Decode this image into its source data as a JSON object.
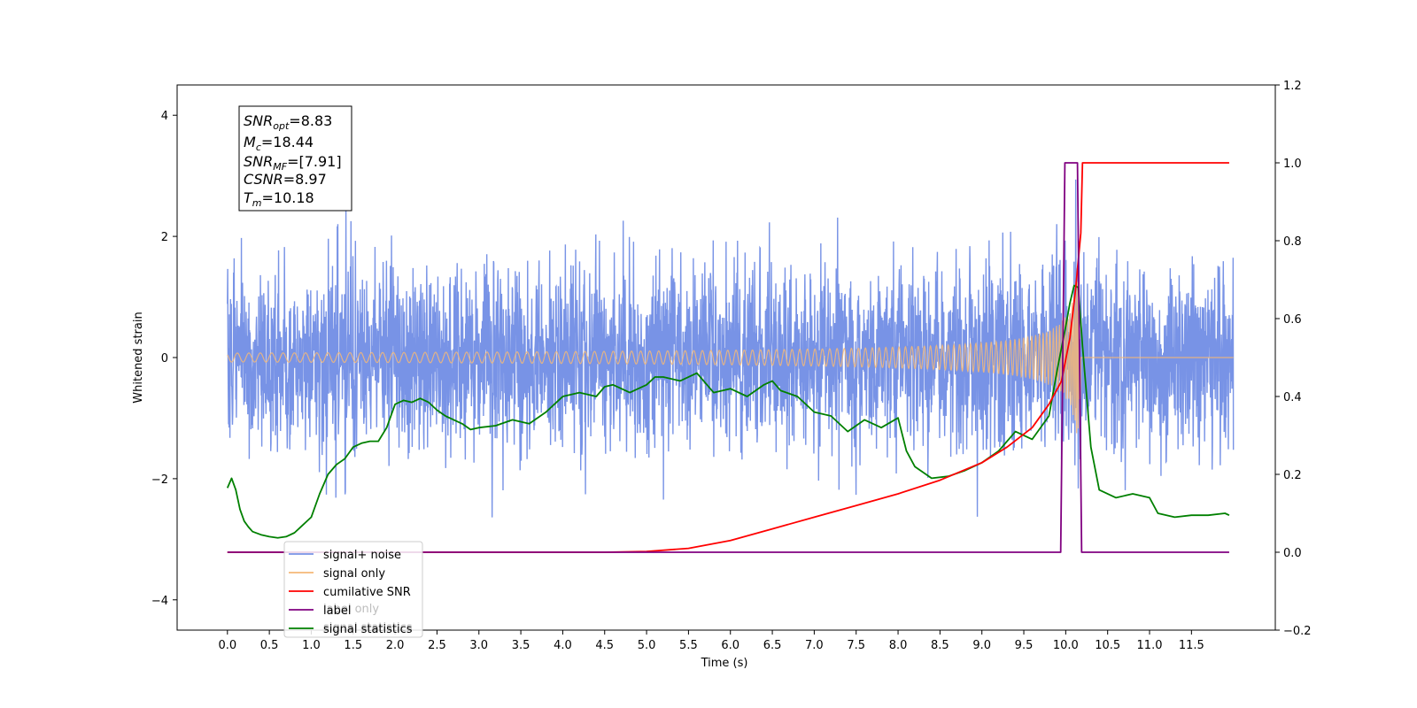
{
  "chart_data": {
    "type": "line",
    "xlabel": "Time (s)",
    "ylabel": "Whitened strain",
    "xlim": [
      -0.6,
      12.5
    ],
    "ylim": [
      -4.5,
      4.5
    ],
    "y2lim": [
      -0.2,
      1.2
    ],
    "x_ticks": [
      "0.0",
      "0.5",
      "1.0",
      "1.5",
      "2.0",
      "2.5",
      "3.0",
      "3.5",
      "4.0",
      "4.5",
      "5.0",
      "5.5",
      "6.0",
      "6.5",
      "7.0",
      "7.5",
      "8.0",
      "8.5",
      "9.0",
      "9.5",
      "10.0",
      "10.5",
      "11.0",
      "11.5"
    ],
    "y_ticks": [
      "4",
      "2",
      "0",
      "−2",
      "−4"
    ],
    "y2_ticks": [
      "1.2",
      "1.0",
      "0.8",
      "0.6",
      "0.4",
      "0.2",
      "0.0",
      "−0.2"
    ],
    "info_box": {
      "snr_opt": {
        "sym": "SNR",
        "sub": "opt",
        "val": "=8.83"
      },
      "mc": {
        "sym": "M",
        "sub": "c",
        "val": "=18.44"
      },
      "snr_mf": {
        "sym": "SNR",
        "sub": "MF",
        "val": "=[7.91]"
      },
      "csnr": {
        "sym": "CSNR",
        "val": "=8.97"
      },
      "tm": {
        "sym": "T",
        "sub": "m",
        "val": "=10.18"
      }
    },
    "legend": {
      "placement": "lower-left",
      "entries": [
        "signal+ noise",
        "signal only",
        "cumilative SNR",
        "label",
        "signal statistics"
      ]
    },
    "legend_overlap_text": [
      "label only",
      "signal statistics"
    ],
    "series": [
      {
        "name": "signal+ noise",
        "axis": "left",
        "color": "#7893e6",
        "noise_std": 0.75,
        "x_start": 0.0,
        "x_end": 12.0
      },
      {
        "name": "signal only",
        "axis": "left",
        "color": "#f5b877",
        "chirp_peak_time": 10.18,
        "peak_amplitude": 1.25
      },
      {
        "name": "cumilative SNR",
        "axis": "right",
        "color": "#ff0000",
        "x": [
          0.0,
          4.5,
          5.0,
          5.5,
          6.0,
          6.5,
          7.0,
          7.5,
          8.0,
          8.5,
          9.0,
          9.3,
          9.6,
          9.8,
          9.95,
          10.05,
          10.12,
          10.18,
          10.2,
          11.95
        ],
        "y": [
          0.0,
          0.0,
          0.002,
          0.01,
          0.03,
          0.06,
          0.09,
          0.12,
          0.15,
          0.185,
          0.23,
          0.27,
          0.32,
          0.38,
          0.44,
          0.55,
          0.68,
          0.82,
          1.0,
          1.0
        ]
      },
      {
        "name": "label",
        "axis": "right",
        "color": "#800080",
        "x": [
          0.0,
          9.94,
          9.99,
          10.14,
          10.19,
          11.95
        ],
        "y": [
          0.0,
          0.0,
          1.0,
          1.0,
          0.0,
          0.0
        ]
      },
      {
        "name": "signal statistics",
        "axis": "right",
        "color": "#008000",
        "x": [
          0.0,
          0.05,
          0.1,
          0.15,
          0.2,
          0.25,
          0.3,
          0.4,
          0.5,
          0.6,
          0.7,
          0.8,
          0.9,
          1.0,
          1.1,
          1.2,
          1.3,
          1.4,
          1.5,
          1.6,
          1.7,
          1.8,
          1.9,
          2.0,
          2.1,
          2.2,
          2.3,
          2.4,
          2.5,
          2.6,
          2.7,
          2.8,
          2.9,
          3.0,
          3.2,
          3.4,
          3.6,
          3.8,
          3.9,
          4.0,
          4.2,
          4.4,
          4.5,
          4.6,
          4.8,
          5.0,
          5.1,
          5.2,
          5.4,
          5.6,
          5.8,
          6.0,
          6.2,
          6.4,
          6.5,
          6.6,
          6.8,
          7.0,
          7.2,
          7.4,
          7.6,
          7.8,
          8.0,
          8.1,
          8.2,
          8.4,
          8.6,
          8.8,
          9.0,
          9.2,
          9.4,
          9.6,
          9.8,
          9.9,
          10.0,
          10.05,
          10.1,
          10.15,
          10.2,
          10.3,
          10.4,
          10.6,
          10.8,
          11.0,
          11.1,
          11.3,
          11.5,
          11.7,
          11.9,
          11.95
        ],
        "y": [
          0.165,
          0.19,
          0.16,
          0.11,
          0.08,
          0.065,
          0.053,
          0.045,
          0.04,
          0.037,
          0.04,
          0.05,
          0.07,
          0.09,
          0.15,
          0.2,
          0.225,
          0.24,
          0.27,
          0.28,
          0.285,
          0.285,
          0.32,
          0.38,
          0.39,
          0.385,
          0.395,
          0.385,
          0.365,
          0.35,
          0.34,
          0.33,
          0.315,
          0.32,
          0.325,
          0.34,
          0.33,
          0.36,
          0.38,
          0.4,
          0.41,
          0.4,
          0.425,
          0.43,
          0.41,
          0.43,
          0.45,
          0.45,
          0.44,
          0.46,
          0.41,
          0.42,
          0.4,
          0.43,
          0.44,
          0.415,
          0.4,
          0.36,
          0.35,
          0.31,
          0.34,
          0.32,
          0.345,
          0.26,
          0.22,
          0.19,
          0.195,
          0.21,
          0.23,
          0.26,
          0.31,
          0.29,
          0.35,
          0.47,
          0.58,
          0.64,
          0.685,
          0.68,
          0.53,
          0.27,
          0.16,
          0.14,
          0.15,
          0.14,
          0.1,
          0.09,
          0.095,
          0.095,
          0.1,
          0.095
        ]
      }
    ]
  }
}
